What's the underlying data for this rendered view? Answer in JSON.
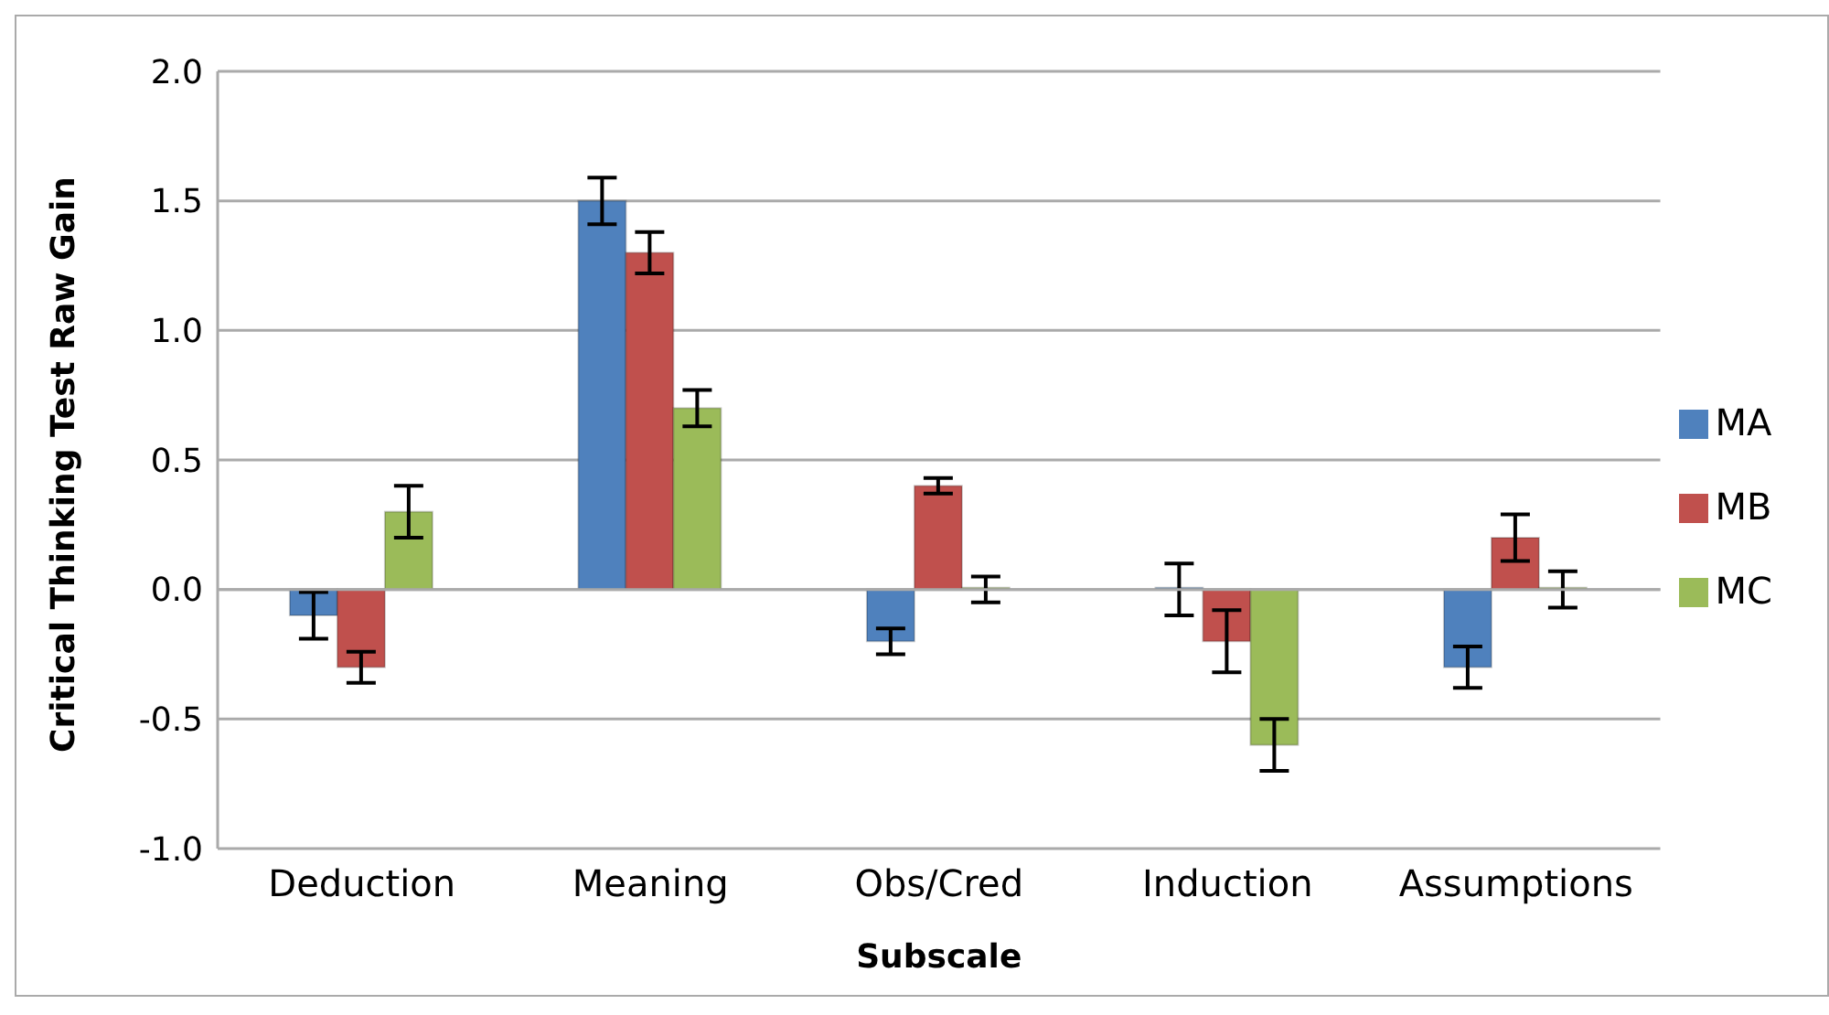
{
  "chart_data": {
    "type": "bar",
    "xlabel": "Subscale",
    "ylabel": "Critical Thinking Test Raw Gain",
    "categories": [
      "Deduction",
      "Meaning",
      "Obs/Cred",
      "Induction",
      "Assumptions"
    ],
    "series": [
      {
        "name": "MA",
        "color": "#4f81bd",
        "values": [
          -0.1,
          1.5,
          -0.2,
          0,
          -0.3
        ],
        "errors": [
          0.09,
          0.09,
          0.05,
          0.1,
          0.08
        ]
      },
      {
        "name": "MB",
        "color": "#c0504d",
        "values": [
          -0.3,
          1.3,
          0.4,
          -0.2,
          0.2
        ],
        "errors": [
          0.06,
          0.08,
          0.03,
          0.12,
          0.09
        ]
      },
      {
        "name": "MC",
        "color": "#9bbb59",
        "values": [
          0.3,
          0.7,
          0,
          -0.6,
          0
        ],
        "errors": [
          0.1,
          0.07,
          0.05,
          0.1,
          0.07
        ]
      }
    ],
    "ylim": [
      -1,
      2
    ],
    "yticks": [
      {
        "value": -1,
        "label": "-1.0"
      },
      {
        "value": -0.5,
        "label": "-0.5"
      },
      {
        "value": 0,
        "label": "0.0"
      },
      {
        "value": 0.5,
        "label": "0.5"
      },
      {
        "value": 1,
        "label": "1.0"
      },
      {
        "value": 1.5,
        "label": "1.5"
      },
      {
        "value": 2,
        "label": "2.0"
      }
    ],
    "grid": "y",
    "legend": "right"
  }
}
